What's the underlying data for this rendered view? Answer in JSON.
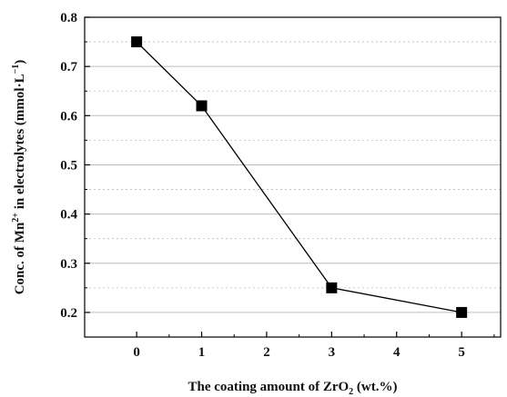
{
  "chart_data": {
    "type": "line",
    "x": [
      0,
      1,
      3,
      5
    ],
    "y": [
      0.75,
      0.62,
      0.25,
      0.2
    ],
    "xlabel": {
      "pre": "The coating amount of ZrO",
      "sub": "2",
      "post": " (wt.%)"
    },
    "ylabel": {
      "pre": "Conc. of Mn",
      "sup": "2+",
      "mid": " in electrolytes (mmol·L",
      "sup2": "−1",
      "post": ")"
    },
    "xlim": [
      -0.8,
      5.6
    ],
    "ylim": [
      0.15,
      0.8
    ],
    "xticks": [
      "0",
      "1",
      "2",
      "3",
      "4",
      "5"
    ],
    "yticks": [
      "0.2",
      "0.3",
      "0.4",
      "0.5",
      "0.6",
      "0.7",
      "0.8"
    ],
    "grid": "horizontal",
    "marker": "square",
    "line_color": "#000000",
    "marker_color": "#000000",
    "grid_color": "#bdbdbd"
  }
}
